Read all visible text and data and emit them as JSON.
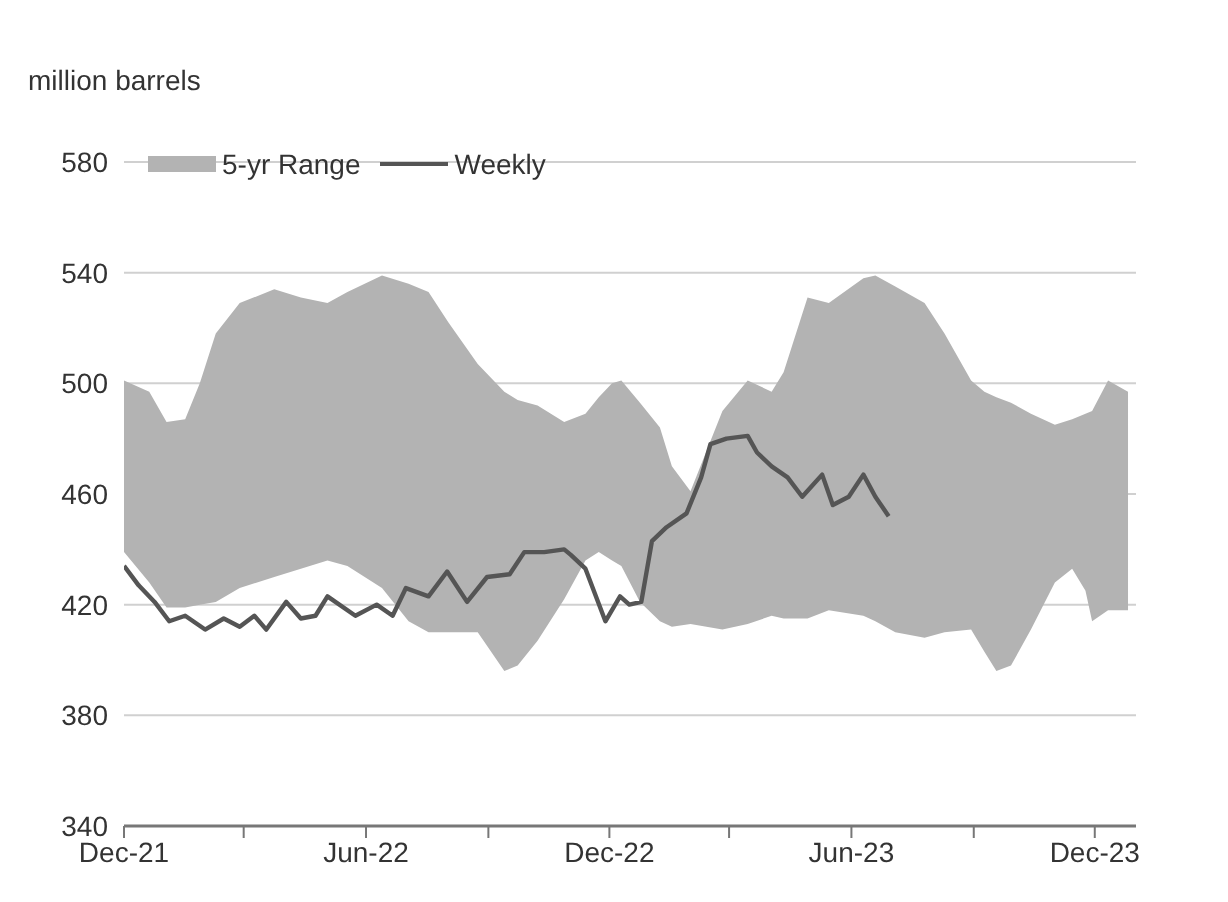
{
  "chart_data": {
    "type": "line",
    "ylabel": "million barrels",
    "xlim": [
      "2021-12-01",
      "2024-01-01"
    ],
    "xticks": [
      {
        "value": "2021-12-01",
        "label": "Dec-21"
      },
      {
        "value": "2022-03-01",
        "label": null
      },
      {
        "value": "2022-06-01",
        "label": "Jun-22"
      },
      {
        "value": "2022-09-01",
        "label": null
      },
      {
        "value": "2022-12-01",
        "label": "Dec-22"
      },
      {
        "value": "2023-03-01",
        "label": null
      },
      {
        "value": "2023-06-01",
        "label": "Jun-23"
      },
      {
        "value": "2023-09-01",
        "label": null
      },
      {
        "value": "2023-12-01",
        "label": "Dec-23"
      }
    ],
    "ylim": [
      340,
      580
    ],
    "yticks": [
      340,
      380,
      420,
      460,
      500,
      540,
      580
    ],
    "grid": "y",
    "legend": "top left",
    "series": [
      {
        "name": "5-yr Range",
        "color": "#b3b3b3",
        "x": [
          "2021-12-01",
          "2021-12-20",
          "2022-01-02",
          "2022-01-16",
          "2022-01-27",
          "2022-02-08",
          "2022-02-26",
          "2022-03-24",
          "2022-04-13",
          "2022-05-03",
          "2022-05-18",
          "2022-06-13",
          "2022-07-03",
          "2022-07-18",
          "2022-08-02",
          "2022-08-24",
          "2022-09-13",
          "2022-09-23",
          "2022-10-08",
          "2022-10-28",
          "2022-11-13",
          "2022-11-23",
          "2022-12-03",
          "2022-12-10",
          "2022-12-24",
          "2023-01-08",
          "2023-01-17",
          "2023-01-31",
          "2023-02-24",
          "2023-03-15",
          "2023-04-02",
          "2023-04-11",
          "2023-04-29",
          "2023-05-15",
          "2023-06-10",
          "2023-06-19",
          "2023-07-04",
          "2023-07-26",
          "2023-08-10",
          "2023-08-30",
          "2023-09-09",
          "2023-09-18",
          "2023-09-29",
          "2023-10-14",
          "2023-11-01",
          "2023-11-14",
          "2023-11-24",
          "2023-11-29",
          "2023-12-11",
          "2023-12-26"
        ],
        "values": [
          null,
          null,
          null,
          null,
          null,
          null,
          null,
          null,
          null,
          null,
          null,
          null,
          null,
          null,
          null,
          null,
          null,
          null,
          null,
          null,
          null,
          null,
          null,
          null,
          null,
          null,
          null,
          null,
          null,
          null,
          null,
          null,
          null,
          null,
          null,
          null,
          null,
          null,
          null,
          null,
          null,
          null,
          null,
          null,
          null,
          null,
          null,
          null,
          null,
          null
        ],
        "upper": [
          501,
          497,
          486,
          487,
          500,
          518,
          529,
          534,
          531,
          529,
          533,
          539,
          536,
          533,
          522,
          507,
          497,
          494,
          492,
          486,
          489,
          495,
          500,
          501,
          493,
          484,
          470,
          461,
          490,
          501,
          497,
          504,
          531,
          529,
          538,
          539,
          535,
          529,
          518,
          501,
          497,
          495,
          493,
          489,
          485,
          487,
          489,
          490,
          501,
          497
        ],
        "lower": [
          439,
          428,
          419,
          419,
          420,
          421,
          426,
          430,
          433,
          436,
          434,
          426,
          414,
          410,
          410,
          410,
          396,
          398,
          407,
          422,
          436,
          439,
          436,
          434,
          421,
          414,
          412,
          413,
          411,
          413,
          416,
          415,
          415,
          418,
          416,
          414,
          410,
          408,
          410,
          411,
          403,
          396,
          398,
          411,
          428,
          433,
          425,
          414,
          418,
          418
        ]
      },
      {
        "name": "Weekly",
        "color": "#555555",
        "x": [
          "2021-12-01",
          "2021-12-12",
          "2021-12-24",
          "2022-01-04",
          "2022-01-16",
          "2022-01-31",
          "2022-02-14",
          "2022-02-26",
          "2022-03-09",
          "2022-03-18",
          "2022-04-02",
          "2022-04-13",
          "2022-04-24",
          "2022-05-03",
          "2022-05-24",
          "2022-06-09",
          "2022-06-21",
          "2022-07-01",
          "2022-07-18",
          "2022-08-01",
          "2022-08-16",
          "2022-08-31",
          "2022-09-17",
          "2022-09-28",
          "2022-10-13",
          "2022-10-28",
          "2022-11-02",
          "2022-11-13",
          "2022-11-28",
          "2022-12-09",
          "2022-12-16",
          "2022-12-25",
          "2023-01-02",
          "2023-01-13",
          "2023-01-28",
          "2023-02-08",
          "2023-02-15",
          "2023-02-27",
          "2023-03-15",
          "2023-03-22",
          "2023-04-02",
          "2023-04-14",
          "2023-04-25",
          "2023-05-10",
          "2023-05-18",
          "2023-05-30",
          "2023-06-10",
          "2023-06-19",
          "2023-06-29"
        ],
        "values": [
          434,
          427,
          421,
          414,
          416,
          411,
          415,
          412,
          416,
          411,
          421,
          415,
          416,
          423,
          416,
          420,
          416,
          426,
          423,
          432,
          421,
          430,
          431,
          439,
          439,
          440,
          438,
          433,
          414,
          423,
          420,
          421,
          443,
          448,
          453,
          466,
          478,
          480,
          481,
          475,
          470,
          466,
          459,
          467,
          456,
          459,
          467,
          459,
          452
        ]
      }
    ]
  }
}
